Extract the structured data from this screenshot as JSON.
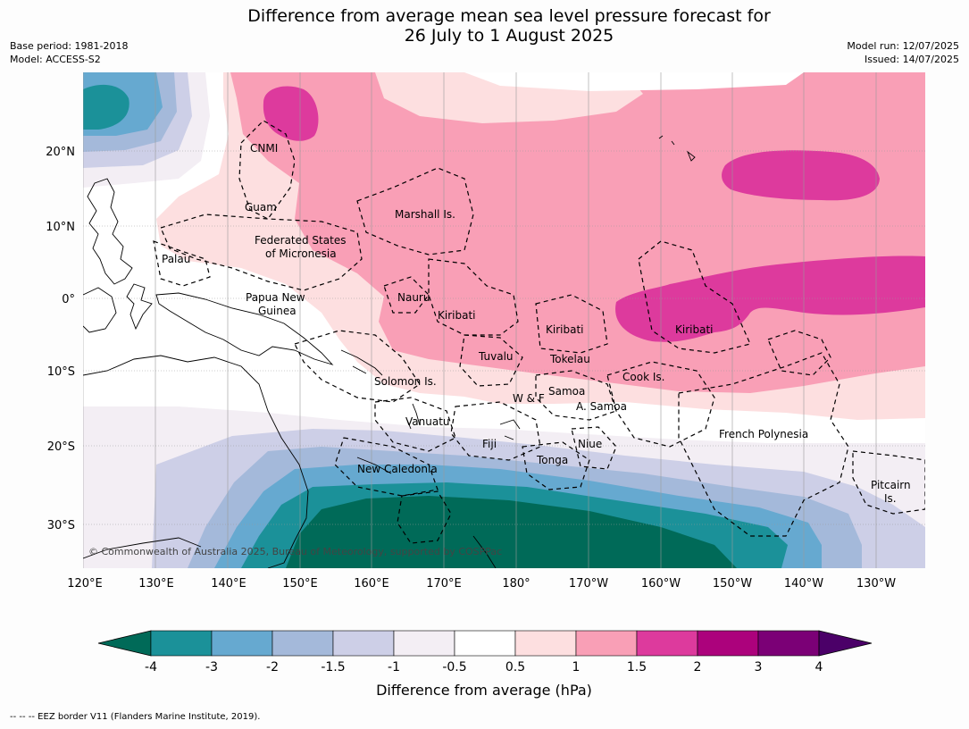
{
  "title_line1": "Difference from average mean sea level pressure forecast for",
  "title_line2": "26 July to 1 August 2025",
  "meta": {
    "base_period": "Base period: 1981-2018",
    "model": "Model: ACCESS-S2",
    "model_run": "Model run: 12/07/2025",
    "issued": "Issued: 14/07/2025"
  },
  "copyright": "© Commonwealth of Australia 2025, Bureau of Meteorology, supported by COSPPac",
  "footnote": "-- -- -- EEZ border V11 (Flanders Marine Institute, 2019).",
  "lon_labels": [
    "120°E",
    "130°E",
    "140°E",
    "150°E",
    "160°E",
    "170°E",
    "180°",
    "170°W",
    "160°W",
    "150°W",
    "140°W",
    "130°W"
  ],
  "lat_labels": [
    "20°N",
    "10°N",
    "0°",
    "10°S",
    "20°S",
    "30°S"
  ],
  "places": [
    {
      "name": "CNMI"
    },
    {
      "name": "Guam"
    },
    {
      "name": "Marshall Is."
    },
    {
      "name": "Federated States"
    },
    {
      "name": "of Micronesia"
    },
    {
      "name": "Palau"
    },
    {
      "name": "Papua New"
    },
    {
      "name": "Guinea"
    },
    {
      "name": "Nauru"
    },
    {
      "name": "Kiribati"
    },
    {
      "name": "Kiribati"
    },
    {
      "name": "Kiribati"
    },
    {
      "name": "Tuvalu"
    },
    {
      "name": "Tokelau"
    },
    {
      "name": "Cook Is."
    },
    {
      "name": "Solomon Is."
    },
    {
      "name": "W & F"
    },
    {
      "name": "Samoa"
    },
    {
      "name": "A. Samoa"
    },
    {
      "name": "Vanuatu"
    },
    {
      "name": "Fiji"
    },
    {
      "name": "Niue"
    },
    {
      "name": "Tonga"
    },
    {
      "name": "French Polynesia"
    },
    {
      "name": "New Caledonia"
    },
    {
      "name": "Pitcairn"
    },
    {
      "name": "Is."
    }
  ],
  "colorbar": {
    "label": "Difference from average (hPa)",
    "tick_labels": [
      "-4",
      "-3",
      "-2",
      "-1.5",
      "-1",
      "-0.5",
      "0.5",
      "1",
      "1.5",
      "2",
      "3",
      "4"
    ],
    "low_extend_color": "#006a58",
    "high_extend_color": "#4b0068",
    "colors": [
      "#1b9199",
      "#66a9d0",
      "#a4b9da",
      "#cdcfe7",
      "#f3eef4",
      "#ffffff",
      "#fddfe0",
      "#f99fb6",
      "#dd3a9d",
      "#ac027c",
      "#7b0076"
    ]
  }
}
